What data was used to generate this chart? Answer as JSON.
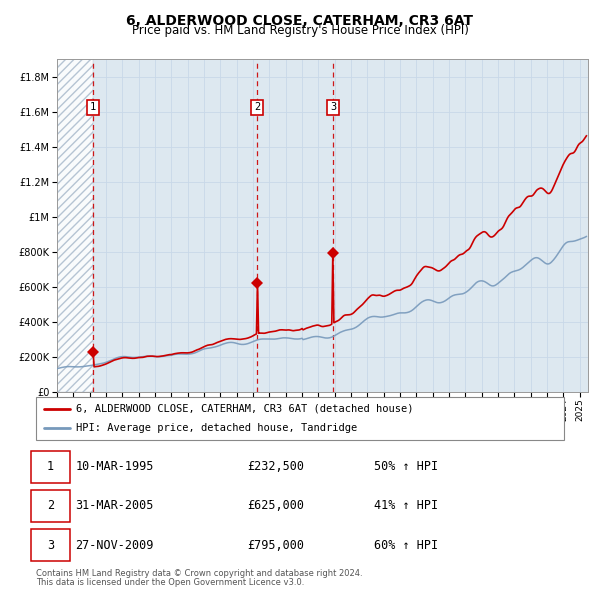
{
  "title": "6, ALDERWOOD CLOSE, CATERHAM, CR3 6AT",
  "subtitle": "Price paid vs. HM Land Registry's House Price Index (HPI)",
  "hpi_label": "HPI: Average price, detached house, Tandridge",
  "property_label": "6, ALDERWOOD CLOSE, CATERHAM, CR3 6AT (detached house)",
  "footnote1": "Contains HM Land Registry data © Crown copyright and database right 2024.",
  "footnote2": "This data is licensed under the Open Government Licence v3.0.",
  "sales": [
    {
      "num": 1,
      "date": "10-MAR-1995",
      "price": 232500,
      "pct": "50%",
      "x_year": 1995.19
    },
    {
      "num": 2,
      "date": "31-MAR-2005",
      "price": 625000,
      "pct": "41%",
      "x_year": 2005.25
    },
    {
      "num": 3,
      "date": "27-NOV-2009",
      "price": 795000,
      "pct": "60%",
      "x_year": 2009.9
    }
  ],
  "ylim": [
    0,
    1900000
  ],
  "xlim_start": 1993.0,
  "xlim_end": 2025.5,
  "hatch_end_year": 1995.19,
  "red_color": "#cc0000",
  "blue_color": "#7799bb",
  "grid_color": "#c8d8e8",
  "bg_color": "#dde8f0",
  "hatch_color": "#aabbcc",
  "title_fontsize": 10,
  "subtitle_fontsize": 8.5,
  "tick_fontsize": 7,
  "legend_fontsize": 8
}
